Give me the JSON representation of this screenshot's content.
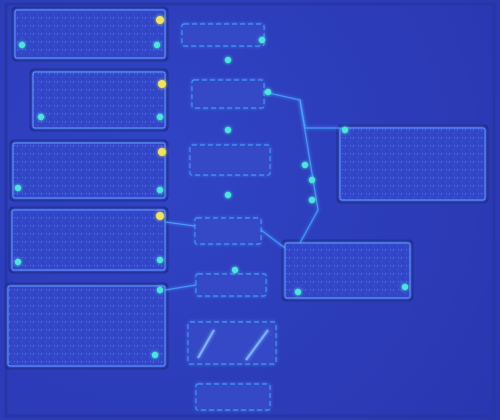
{
  "colors": {
    "background": "#2f3fbf",
    "panel_fill": "#3346c8",
    "panel_edge": "#1f2a8e",
    "panel_glow": "#5a8cff",
    "trace": "#4aa6ff",
    "hotspot_cyan": "#49e7d8",
    "hotspot_yellow": "#f1e35a"
  },
  "figure": {
    "description_text": ""
  }
}
